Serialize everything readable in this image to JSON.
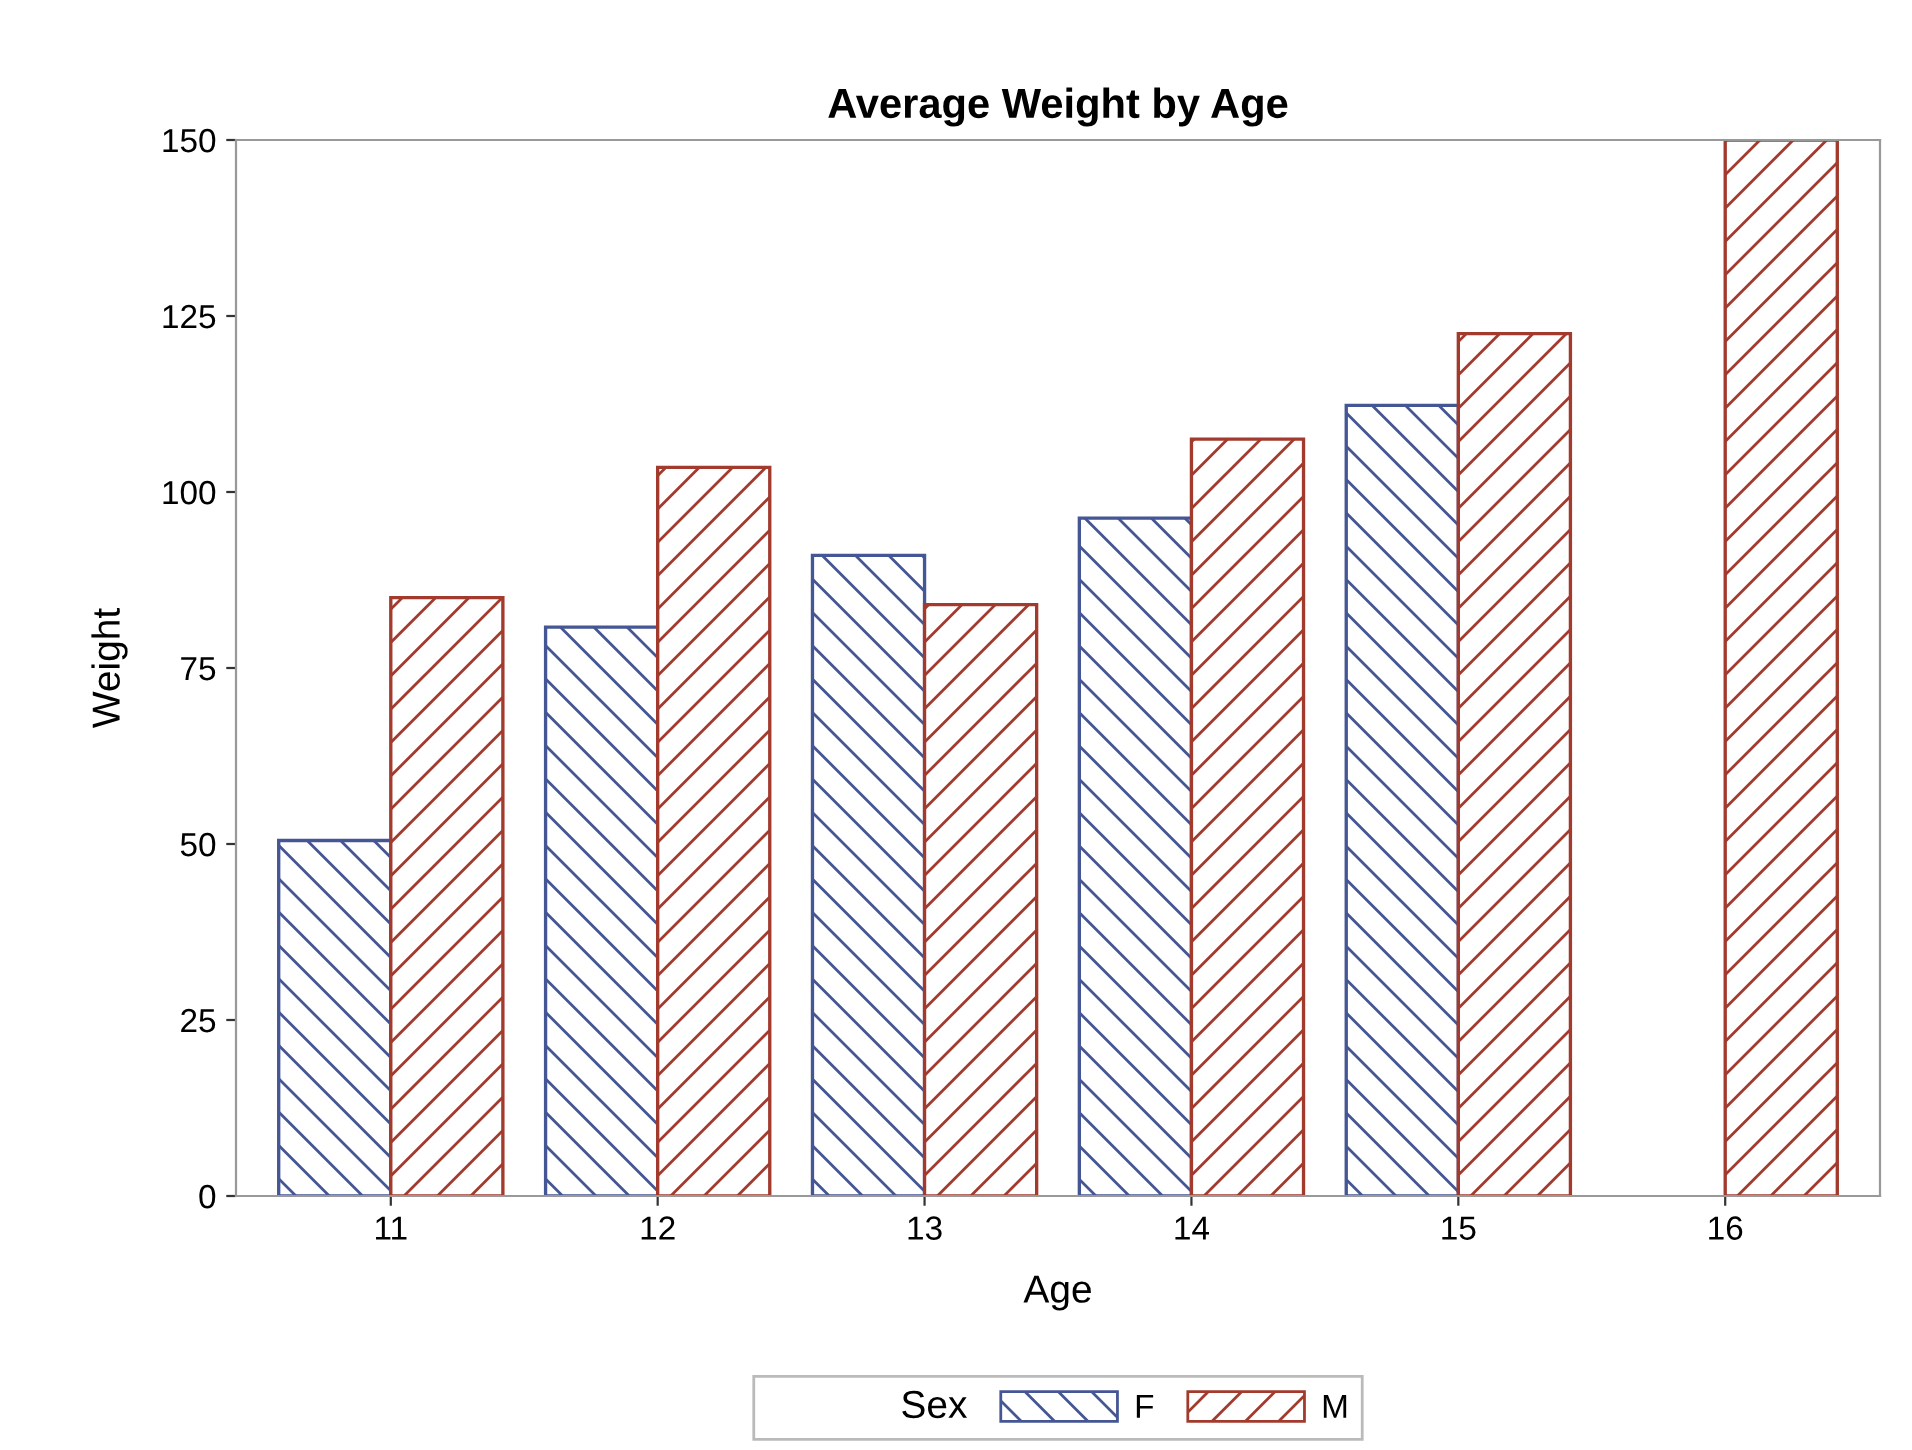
{
  "chart_data": {
    "type": "bar",
    "title": "Average Weight by Age",
    "xlabel": "Age",
    "ylabel": "Weight",
    "legend_title": "Sex",
    "categories": [
      "11",
      "12",
      "13",
      "14",
      "15",
      "16"
    ],
    "series": [
      {
        "name": "F",
        "color": "#445694",
        "values": [
          50.5,
          80.8,
          91,
          96.3,
          112.3,
          null
        ]
      },
      {
        "name": "M",
        "color": "#a23a2e",
        "values": [
          85,
          103.5,
          84,
          107.5,
          122.5,
          150
        ]
      }
    ],
    "ylim": [
      0,
      150
    ],
    "yticks": [
      0,
      25,
      50,
      75,
      100,
      125,
      150
    ],
    "grid": false,
    "legend": "bottom"
  }
}
